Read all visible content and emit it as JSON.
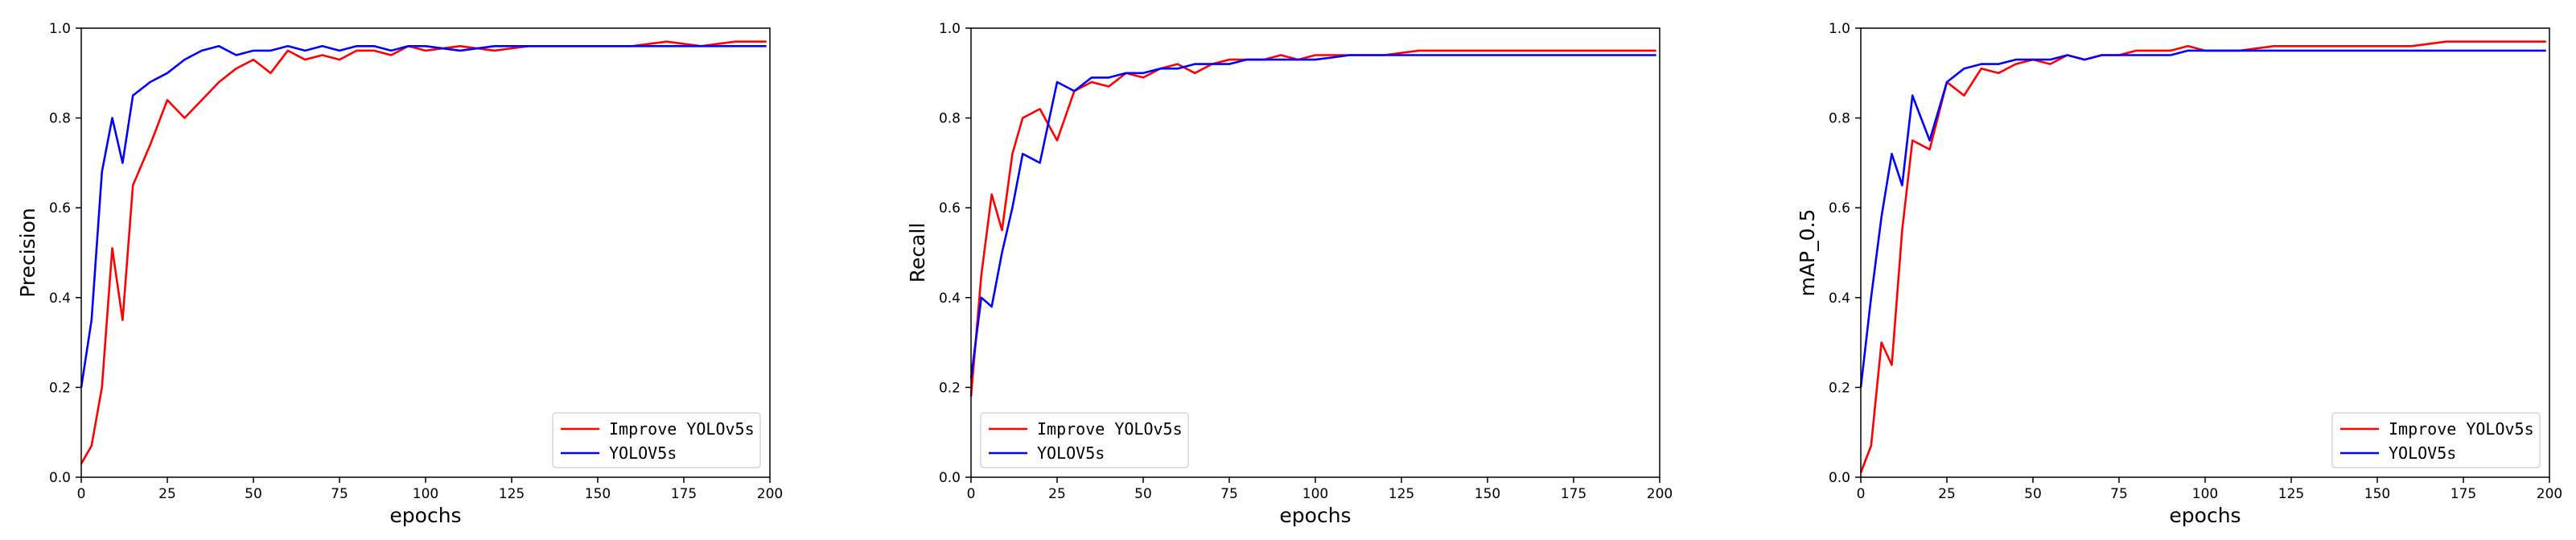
{
  "figure": {
    "xlabel": "epochs",
    "x_ticks": [
      "0",
      "25",
      "50",
      "75",
      "100",
      "125",
      "150",
      "175",
      "200"
    ],
    "y_ticks": [
      "0.0",
      "0.2",
      "0.4",
      "0.6",
      "0.8",
      "1.0"
    ]
  },
  "chart_data": [
    {
      "type": "line",
      "title": "",
      "xlabel": "epochs",
      "ylabel": "Precision",
      "xlim": [
        0,
        200
      ],
      "ylim": [
        0,
        1
      ],
      "grid": false,
      "legend_position": "bottom-right",
      "x": [
        0,
        3,
        6,
        9,
        12,
        15,
        20,
        25,
        30,
        35,
        40,
        45,
        50,
        55,
        60,
        65,
        70,
        75,
        80,
        85,
        90,
        95,
        100,
        110,
        120,
        130,
        140,
        150,
        160,
        170,
        180,
        190,
        199
      ],
      "series": [
        {
          "name": "Improve YOLOv5s",
          "color": "#ff0000",
          "values": [
            0.03,
            0.07,
            0.2,
            0.51,
            0.35,
            0.65,
            0.74,
            0.84,
            0.8,
            0.84,
            0.88,
            0.91,
            0.93,
            0.9,
            0.95,
            0.93,
            0.94,
            0.93,
            0.95,
            0.95,
            0.94,
            0.96,
            0.95,
            0.96,
            0.95,
            0.96,
            0.96,
            0.96,
            0.96,
            0.97,
            0.96,
            0.97,
            0.97
          ]
        },
        {
          "name": "YOLOV5s",
          "color": "#0000ff",
          "values": [
            0.2,
            0.35,
            0.68,
            0.8,
            0.7,
            0.85,
            0.88,
            0.9,
            0.93,
            0.95,
            0.96,
            0.94,
            0.95,
            0.95,
            0.96,
            0.95,
            0.96,
            0.95,
            0.96,
            0.96,
            0.95,
            0.96,
            0.96,
            0.95,
            0.96,
            0.96,
            0.96,
            0.96,
            0.96,
            0.96,
            0.96,
            0.96,
            0.96
          ]
        }
      ]
    },
    {
      "type": "line",
      "title": "",
      "xlabel": "epochs",
      "ylabel": "Recall",
      "xlim": [
        0,
        200
      ],
      "ylim": [
        0,
        1
      ],
      "grid": false,
      "legend_position": "bottom-left",
      "x": [
        0,
        3,
        6,
        9,
        12,
        15,
        20,
        25,
        30,
        35,
        40,
        45,
        50,
        55,
        60,
        65,
        70,
        75,
        80,
        85,
        90,
        95,
        100,
        110,
        120,
        130,
        140,
        150,
        160,
        170,
        180,
        190,
        199
      ],
      "series": [
        {
          "name": "Improve YOLOv5s",
          "color": "#ff0000",
          "values": [
            0.18,
            0.45,
            0.63,
            0.55,
            0.72,
            0.8,
            0.82,
            0.75,
            0.86,
            0.88,
            0.87,
            0.9,
            0.89,
            0.91,
            0.92,
            0.9,
            0.92,
            0.93,
            0.93,
            0.93,
            0.94,
            0.93,
            0.94,
            0.94,
            0.94,
            0.95,
            0.95,
            0.95,
            0.95,
            0.95,
            0.95,
            0.95,
            0.95
          ]
        },
        {
          "name": "YOLOV5s",
          "color": "#0000ff",
          "values": [
            0.22,
            0.4,
            0.38,
            0.5,
            0.6,
            0.72,
            0.7,
            0.88,
            0.86,
            0.89,
            0.89,
            0.9,
            0.9,
            0.91,
            0.91,
            0.92,
            0.92,
            0.92,
            0.93,
            0.93,
            0.93,
            0.93,
            0.93,
            0.94,
            0.94,
            0.94,
            0.94,
            0.94,
            0.94,
            0.94,
            0.94,
            0.94,
            0.94
          ]
        }
      ]
    },
    {
      "type": "line",
      "title": "",
      "xlabel": "epochs",
      "ylabel": "mAP_0.5",
      "xlim": [
        0,
        200
      ],
      "ylim": [
        0,
        1
      ],
      "grid": false,
      "legend_position": "bottom-right",
      "x": [
        0,
        3,
        6,
        9,
        12,
        15,
        20,
        25,
        30,
        35,
        40,
        45,
        50,
        55,
        60,
        65,
        70,
        75,
        80,
        85,
        90,
        95,
        100,
        110,
        120,
        130,
        140,
        150,
        160,
        170,
        180,
        190,
        199
      ],
      "series": [
        {
          "name": "Improve YOLOv5s",
          "color": "#ff0000",
          "values": [
            0.01,
            0.07,
            0.3,
            0.25,
            0.55,
            0.75,
            0.73,
            0.88,
            0.85,
            0.91,
            0.9,
            0.92,
            0.93,
            0.92,
            0.94,
            0.93,
            0.94,
            0.94,
            0.95,
            0.95,
            0.95,
            0.96,
            0.95,
            0.95,
            0.96,
            0.96,
            0.96,
            0.96,
            0.96,
            0.97,
            0.97,
            0.97,
            0.97
          ]
        },
        {
          "name": "YOLOV5s",
          "color": "#0000ff",
          "values": [
            0.2,
            0.4,
            0.58,
            0.72,
            0.65,
            0.85,
            0.75,
            0.88,
            0.91,
            0.92,
            0.92,
            0.93,
            0.93,
            0.93,
            0.94,
            0.93,
            0.94,
            0.94,
            0.94,
            0.94,
            0.94,
            0.95,
            0.95,
            0.95,
            0.95,
            0.95,
            0.95,
            0.95,
            0.95,
            0.95,
            0.95,
            0.95,
            0.95
          ]
        }
      ]
    }
  ]
}
